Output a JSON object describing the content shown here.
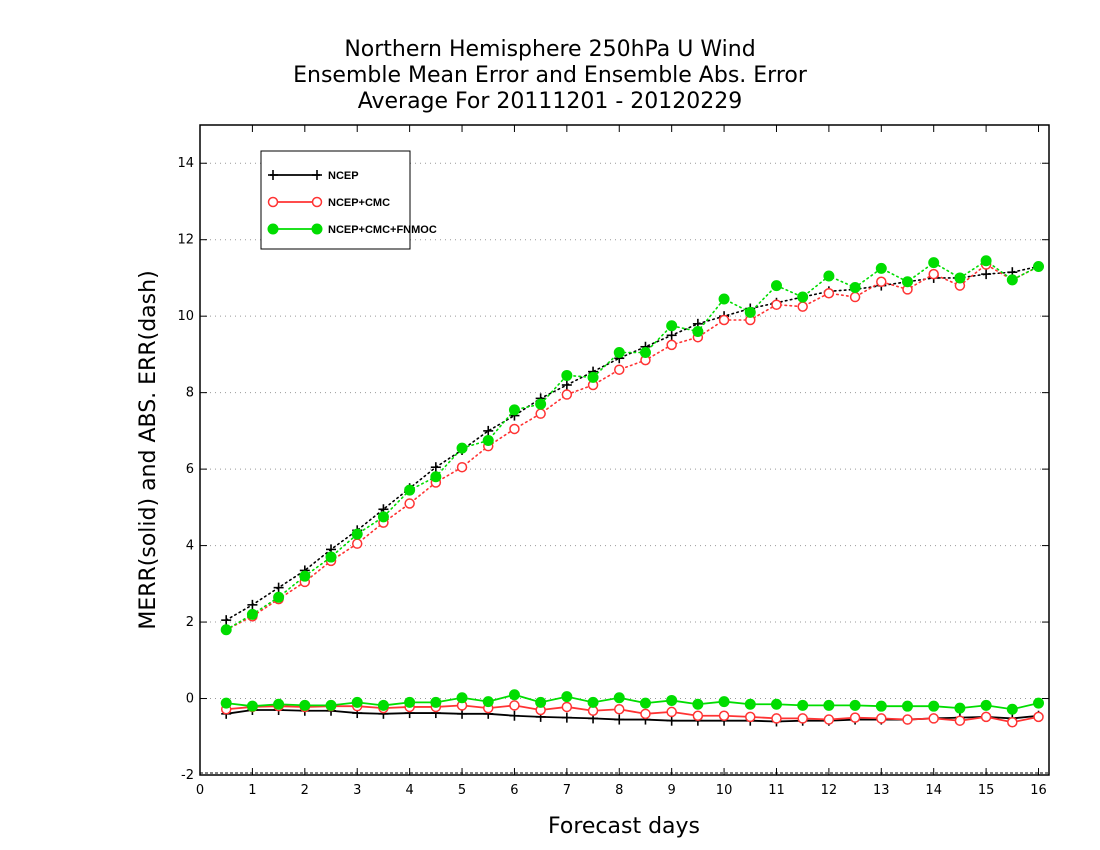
{
  "chart_data": {
    "type": "line",
    "title_lines": [
      "Northern Hemisphere 250hPa U Wind",
      "Ensemble Mean Error and Ensemble Abs. Error",
      "Average For 20111201 - 20120229"
    ],
    "xlabel": "Forecast days",
    "ylabel": "MERR(solid) and ABS. ERR(dash)",
    "xlim": [
      0,
      16.2
    ],
    "ylim": [
      -2,
      15
    ],
    "xticks": [
      "0",
      "1",
      "2",
      "3",
      "4",
      "5",
      "6",
      "7",
      "8",
      "9",
      "10",
      "11",
      "12",
      "13",
      "14",
      "15",
      "16"
    ],
    "yticks": [
      "-2",
      "0",
      "2",
      "4",
      "6",
      "8",
      "10",
      "12",
      "14"
    ],
    "grid": "horizontal dotted",
    "legend_position": "top-left",
    "x": [
      0.5,
      1,
      1.5,
      2,
      2.5,
      3,
      3.5,
      4,
      4.5,
      5,
      5.5,
      6,
      6.5,
      7,
      7.5,
      8,
      8.5,
      9,
      9.5,
      10,
      10.5,
      11,
      11.5,
      12,
      12.5,
      13,
      13.5,
      14,
      14.5,
      15,
      15.5,
      16
    ],
    "series": [
      {
        "name": "NCEP",
        "color": "#000000",
        "marker": "plus",
        "abs_err": [
          2.05,
          2.45,
          2.9,
          3.35,
          3.9,
          4.4,
          4.95,
          5.5,
          6.05,
          6.5,
          7.0,
          7.4,
          7.85,
          8.2,
          8.55,
          8.9,
          9.2,
          9.5,
          9.8,
          10.0,
          10.2,
          10.35,
          10.5,
          10.65,
          10.7,
          10.8,
          10.9,
          11.0,
          11.0,
          11.1,
          11.15,
          11.3
        ],
        "mean_err": [
          -0.4,
          -0.3,
          -0.3,
          -0.32,
          -0.32,
          -0.38,
          -0.4,
          -0.38,
          -0.38,
          -0.4,
          -0.4,
          -0.45,
          -0.48,
          -0.5,
          -0.52,
          -0.55,
          -0.55,
          -0.58,
          -0.58,
          -0.58,
          -0.58,
          -0.6,
          -0.58,
          -0.58,
          -0.55,
          -0.55,
          -0.55,
          -0.52,
          -0.5,
          -0.48,
          -0.52,
          -0.45
        ]
      },
      {
        "name": "NCEP+CMC",
        "color": "#ff3333",
        "marker": "open-circle",
        "abs_err": [
          1.8,
          2.15,
          2.6,
          3.05,
          3.6,
          4.05,
          4.6,
          5.1,
          5.65,
          6.05,
          6.6,
          7.05,
          7.45,
          7.95,
          8.2,
          8.6,
          8.85,
          9.25,
          9.45,
          9.9,
          9.9,
          10.3,
          10.25,
          10.6,
          10.5,
          10.9,
          10.7,
          11.1,
          10.8,
          11.35,
          10.95,
          11.3
        ],
        "mean_err": [
          -0.28,
          -0.22,
          -0.2,
          -0.22,
          -0.2,
          -0.2,
          -0.25,
          -0.22,
          -0.22,
          -0.18,
          -0.25,
          -0.18,
          -0.3,
          -0.22,
          -0.32,
          -0.28,
          -0.4,
          -0.35,
          -0.45,
          -0.45,
          -0.48,
          -0.52,
          -0.52,
          -0.55,
          -0.5,
          -0.52,
          -0.55,
          -0.52,
          -0.58,
          -0.48,
          -0.62,
          -0.48
        ]
      },
      {
        "name": "NCEP+CMC+FNMOC",
        "color": "#00dd00",
        "marker": "filled-circle",
        "abs_err": [
          1.8,
          2.2,
          2.65,
          3.2,
          3.7,
          4.3,
          4.75,
          5.45,
          5.8,
          6.55,
          6.75,
          7.55,
          7.7,
          8.45,
          8.4,
          9.05,
          9.05,
          9.75,
          9.6,
          10.45,
          10.1,
          10.8,
          10.5,
          11.05,
          10.75,
          11.25,
          10.9,
          11.4,
          11.0,
          11.45,
          10.95,
          11.3
        ],
        "mean_err": [
          -0.12,
          -0.2,
          -0.15,
          -0.18,
          -0.18,
          -0.1,
          -0.18,
          -0.1,
          -0.1,
          0.02,
          -0.08,
          0.1,
          -0.1,
          0.05,
          -0.1,
          0.02,
          -0.12,
          -0.05,
          -0.15,
          -0.08,
          -0.15,
          -0.15,
          -0.18,
          -0.18,
          -0.18,
          -0.2,
          -0.2,
          -0.2,
          -0.25,
          -0.18,
          -0.28,
          -0.12
        ]
      }
    ]
  }
}
